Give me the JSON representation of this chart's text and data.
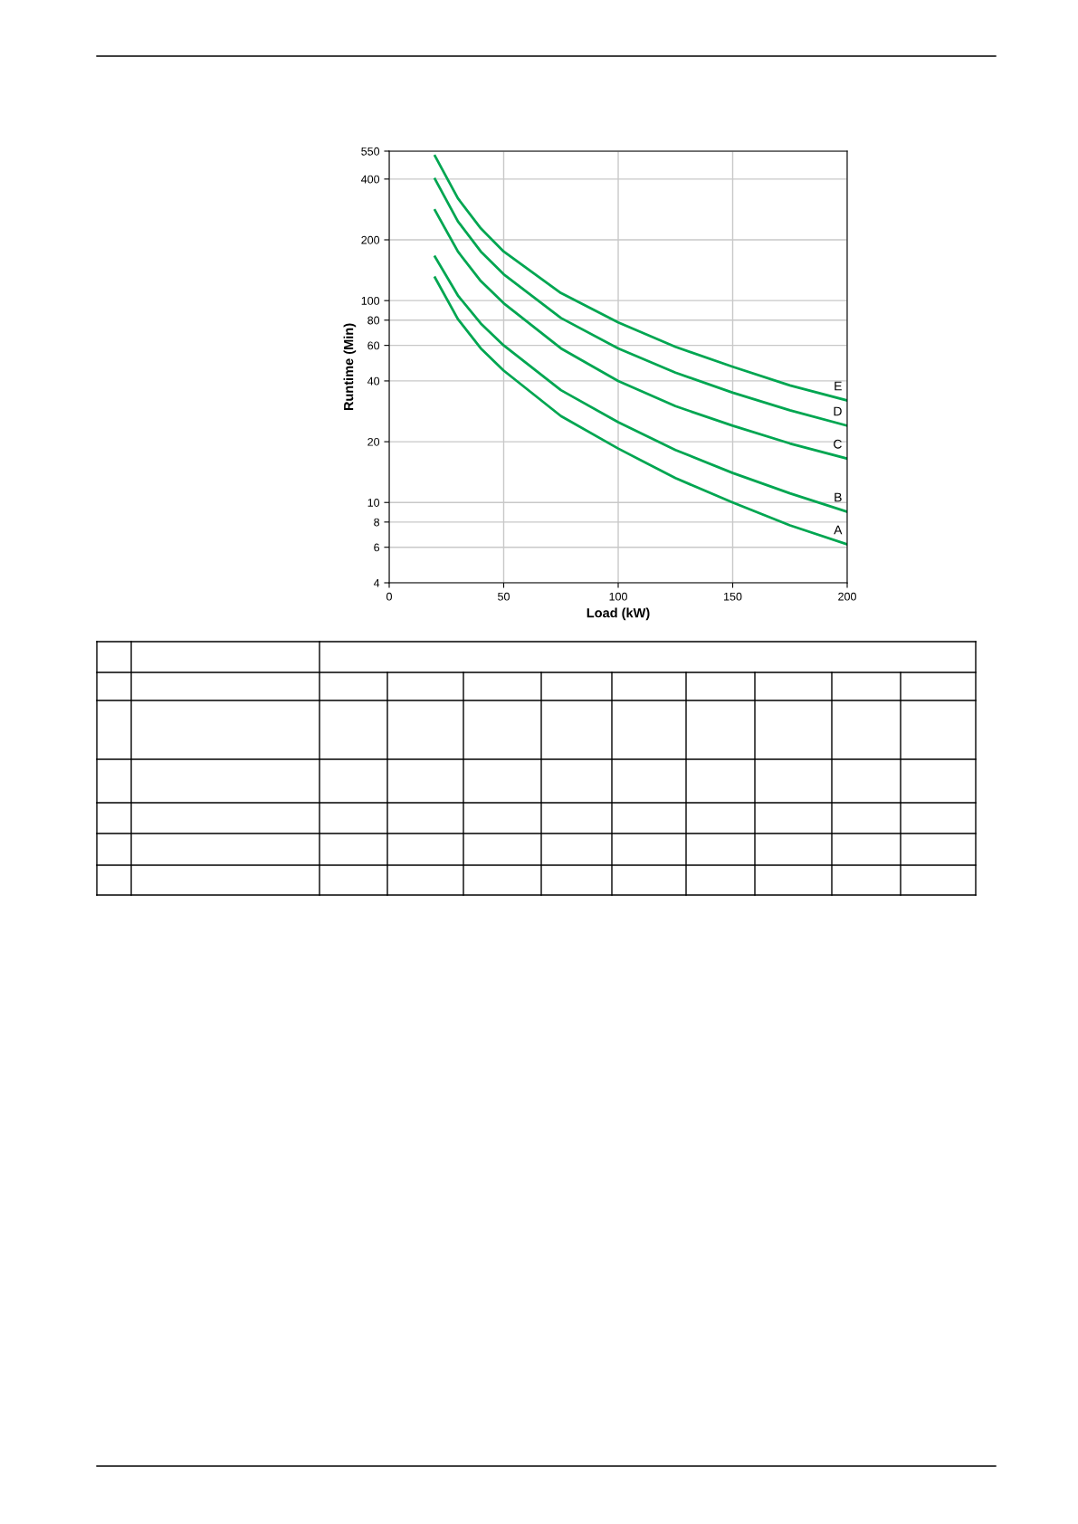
{
  "chart_data": {
    "type": "line",
    "xlabel": "Load (kW)",
    "ylabel": "Runtime (Min)",
    "log": "y",
    "xlim": [
      0,
      200
    ],
    "xticks": [
      0,
      50,
      100,
      150,
      200
    ],
    "ylim": [
      4,
      550
    ],
    "yticks": [
      4,
      6,
      8,
      10,
      20,
      40,
      60,
      80,
      100,
      200,
      400,
      550
    ],
    "grid": true,
    "legend": false,
    "marker": "none",
    "line_style": "solid",
    "x": [
      20,
      30,
      40,
      50,
      75,
      100,
      125,
      150,
      175,
      200
    ],
    "series": [
      {
        "name": "A",
        "color": "#00a651",
        "values": [
          130,
          81,
          58,
          45,
          26.8,
          18.5,
          13.2,
          10,
          7.7,
          6.2
        ]
      },
      {
        "name": "B",
        "color": "#00a651",
        "values": [
          165,
          106,
          77,
          60,
          36,
          25,
          18.2,
          14,
          11.1,
          9
        ]
      },
      {
        "name": "C",
        "color": "#00a651",
        "values": [
          280,
          175,
          125,
          97,
          58,
          40,
          30,
          24,
          19.6,
          16.5
        ]
      },
      {
        "name": "D",
        "color": "#00a651",
        "values": [
          400,
          247,
          175,
          135,
          82,
          58,
          44,
          35,
          28.6,
          24
        ]
      },
      {
        "name": "E",
        "color": "#00a651",
        "values": [
          520,
          321,
          228,
          175,
          109,
          78,
          59,
          47,
          38,
          32
        ]
      }
    ]
  }
}
